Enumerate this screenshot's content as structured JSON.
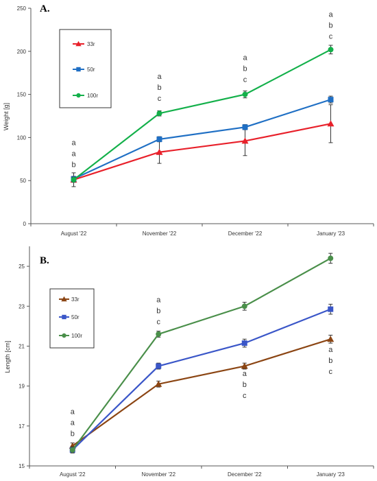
{
  "chart_data": [
    {
      "type": "line",
      "panel_label": "A.",
      "ylabel": "Weight  [g]",
      "xlabel": "",
      "categories": [
        "August '22",
        "November '22",
        "December '22",
        "January '23"
      ],
      "ylim": [
        0,
        250
      ],
      "yticks": [
        "0",
        "50",
        "100",
        "150",
        "200",
        "250"
      ],
      "grid": false,
      "legend_position": "top-left",
      "series": [
        {
          "name": "33r",
          "color": "#e8202a",
          "marker": "triangle",
          "values": [
            51,
            83,
            96,
            116
          ],
          "err": [
            8,
            13,
            17,
            22
          ]
        },
        {
          "name": "50r",
          "color": "#1f6fc4",
          "marker": "square",
          "values": [
            52,
            98,
            112,
            144
          ],
          "err": [
            3,
            3,
            3,
            4
          ]
        },
        {
          "name": "100r",
          "color": "#13b04a",
          "marker": "circle",
          "values": [
            51,
            128,
            150,
            202
          ],
          "err": [
            3,
            3,
            4,
            5
          ]
        }
      ],
      "annotations": [
        {
          "category": 0,
          "value": 91,
          "text": [
            "a",
            "a",
            "b"
          ]
        },
        {
          "category": 1,
          "value": 168,
          "text": [
            "a",
            "b",
            "c"
          ]
        },
        {
          "category": 2,
          "value": 190,
          "text": [
            "a",
            "b",
            "c"
          ]
        },
        {
          "category": 3,
          "value": 240,
          "text": [
            "a",
            "b",
            "c"
          ]
        }
      ]
    },
    {
      "type": "line",
      "panel_label": "B.",
      "ylabel": "Length [cm]",
      "xlabel": "",
      "categories": [
        "August '22",
        "November '22",
        "December '22",
        "January '23"
      ],
      "ylim": [
        15,
        26
      ],
      "yticks": [
        "15",
        "17",
        "19",
        "21",
        "23",
        "25"
      ],
      "grid": false,
      "legend_position": "top-left",
      "series": [
        {
          "name": "33r",
          "color": "#8b4513",
          "marker": "triangle",
          "values": [
            16.0,
            19.1,
            20.0,
            21.35
          ],
          "err": [
            0.15,
            0.15,
            0.15,
            0.2
          ]
        },
        {
          "name": "50r",
          "color": "#3a56c8",
          "marker": "square",
          "values": [
            15.8,
            20.0,
            21.15,
            22.85
          ],
          "err": [
            0.15,
            0.15,
            0.2,
            0.25
          ]
        },
        {
          "name": "100r",
          "color": "#4a8f4a",
          "marker": "circle",
          "values": [
            15.8,
            21.6,
            23.0,
            25.4
          ],
          "err": [
            0.15,
            0.15,
            0.2,
            0.25
          ]
        }
      ],
      "annotations": [
        {
          "category": 0,
          "value": 17.6,
          "text": [
            "a",
            "a",
            "b"
          ]
        },
        {
          "category": 1,
          "value": 23.2,
          "text": [
            "a",
            "b",
            "c"
          ]
        },
        {
          "category": 2,
          "value": 19.5,
          "text": [
            "a",
            "b",
            "c"
          ]
        },
        {
          "category": 3,
          "value": 20.7,
          "text": [
            "a",
            "b",
            "c"
          ]
        }
      ]
    }
  ]
}
